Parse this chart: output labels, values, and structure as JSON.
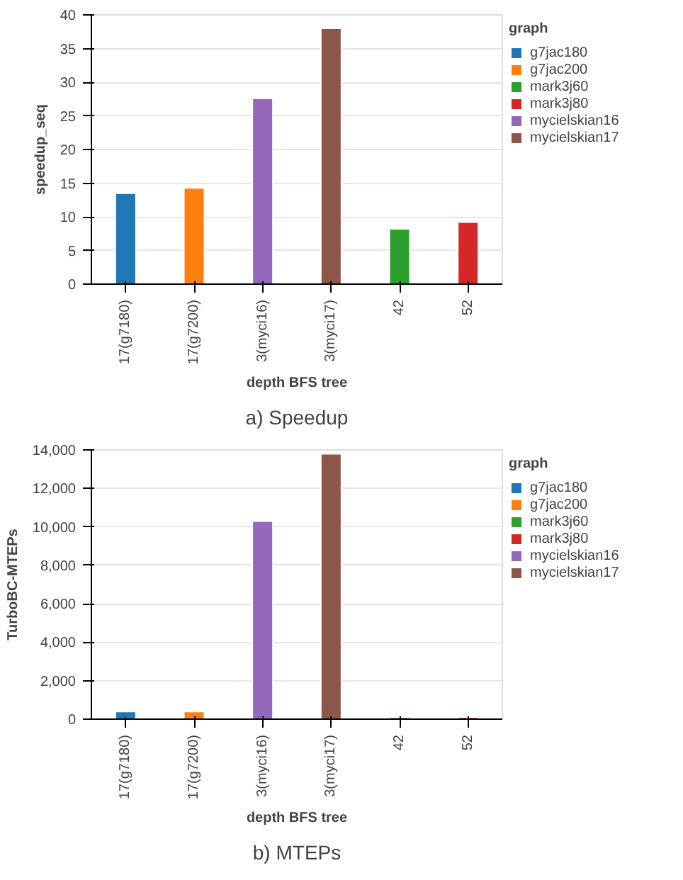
{
  "chart_data": [
    {
      "type": "bar",
      "title": "a) Speedup",
      "xlabel": "depth BFS tree",
      "ylabel": "speedup_seq",
      "legend_title": "graph",
      "categories": [
        "17(g7180)",
        "17(g7200)",
        "3(myci16)",
        "3(myci17)",
        "42",
        "52"
      ],
      "series": [
        {
          "name": "g7jac180",
          "color": "#1f77b4",
          "values": [
            13.5,
            null,
            null,
            null,
            null,
            null
          ]
        },
        {
          "name": "g7jac200",
          "color": "#ff7f0e",
          "values": [
            null,
            14.3,
            null,
            null,
            null,
            null
          ]
        },
        {
          "name": "mark3j60",
          "color": "#2ca02c",
          "values": [
            null,
            null,
            null,
            null,
            8.2,
            null
          ]
        },
        {
          "name": "mark3j80",
          "color": "#d62728",
          "values": [
            null,
            null,
            null,
            null,
            null,
            9.2
          ]
        },
        {
          "name": "mycielskian16",
          "color": "#9467bd",
          "values": [
            null,
            null,
            27.6,
            null,
            null,
            null
          ]
        },
        {
          "name": "mycielskian17",
          "color": "#8c564b",
          "values": [
            null,
            null,
            null,
            38.0,
            null,
            null
          ]
        }
      ],
      "ylim": [
        0,
        40
      ],
      "yticks": [
        0,
        5,
        10,
        15,
        20,
        25,
        30,
        35,
        40
      ],
      "grid": "y",
      "legend": "top right"
    },
    {
      "type": "bar",
      "title": "b) MTEPs",
      "xlabel": "depth BFS tree",
      "ylabel": "TurboBC-MTEPs",
      "legend_title": "graph",
      "categories": [
        "17(g7180)",
        "17(g7200)",
        "3(myci16)",
        "3(myci17)",
        "42",
        "52"
      ],
      "series": [
        {
          "name": "g7jac180",
          "color": "#1f77b4",
          "values": [
            400,
            null,
            null,
            null,
            null,
            null
          ]
        },
        {
          "name": "g7jac200",
          "color": "#ff7f0e",
          "values": [
            null,
            400,
            null,
            null,
            null,
            null
          ]
        },
        {
          "name": "mark3j60",
          "color": "#2ca02c",
          "values": [
            null,
            null,
            null,
            null,
            100,
            null
          ]
        },
        {
          "name": "mark3j80",
          "color": "#d62728",
          "values": [
            null,
            null,
            null,
            null,
            null,
            100
          ]
        },
        {
          "name": "mycielskian16",
          "color": "#9467bd",
          "values": [
            null,
            null,
            10300,
            null,
            null,
            null
          ]
        },
        {
          "name": "mycielskian17",
          "color": "#8c564b",
          "values": [
            null,
            null,
            null,
            13800,
            null,
            null
          ]
        }
      ],
      "ylim": [
        0,
        14000
      ],
      "yticks": [
        {
          "value": 0,
          "label": "0"
        },
        {
          "value": 2000,
          "label": "2,000"
        },
        {
          "value": 4000,
          "label": "4,000"
        },
        {
          "value": 6000,
          "label": "6,000"
        },
        {
          "value": 8000,
          "label": "8,000"
        },
        {
          "value": 10000,
          "label": "10,000"
        },
        {
          "value": 12000,
          "label": "12,000"
        },
        {
          "value": 14000,
          "label": "14,000"
        }
      ],
      "grid": "y",
      "legend": "top right"
    }
  ]
}
